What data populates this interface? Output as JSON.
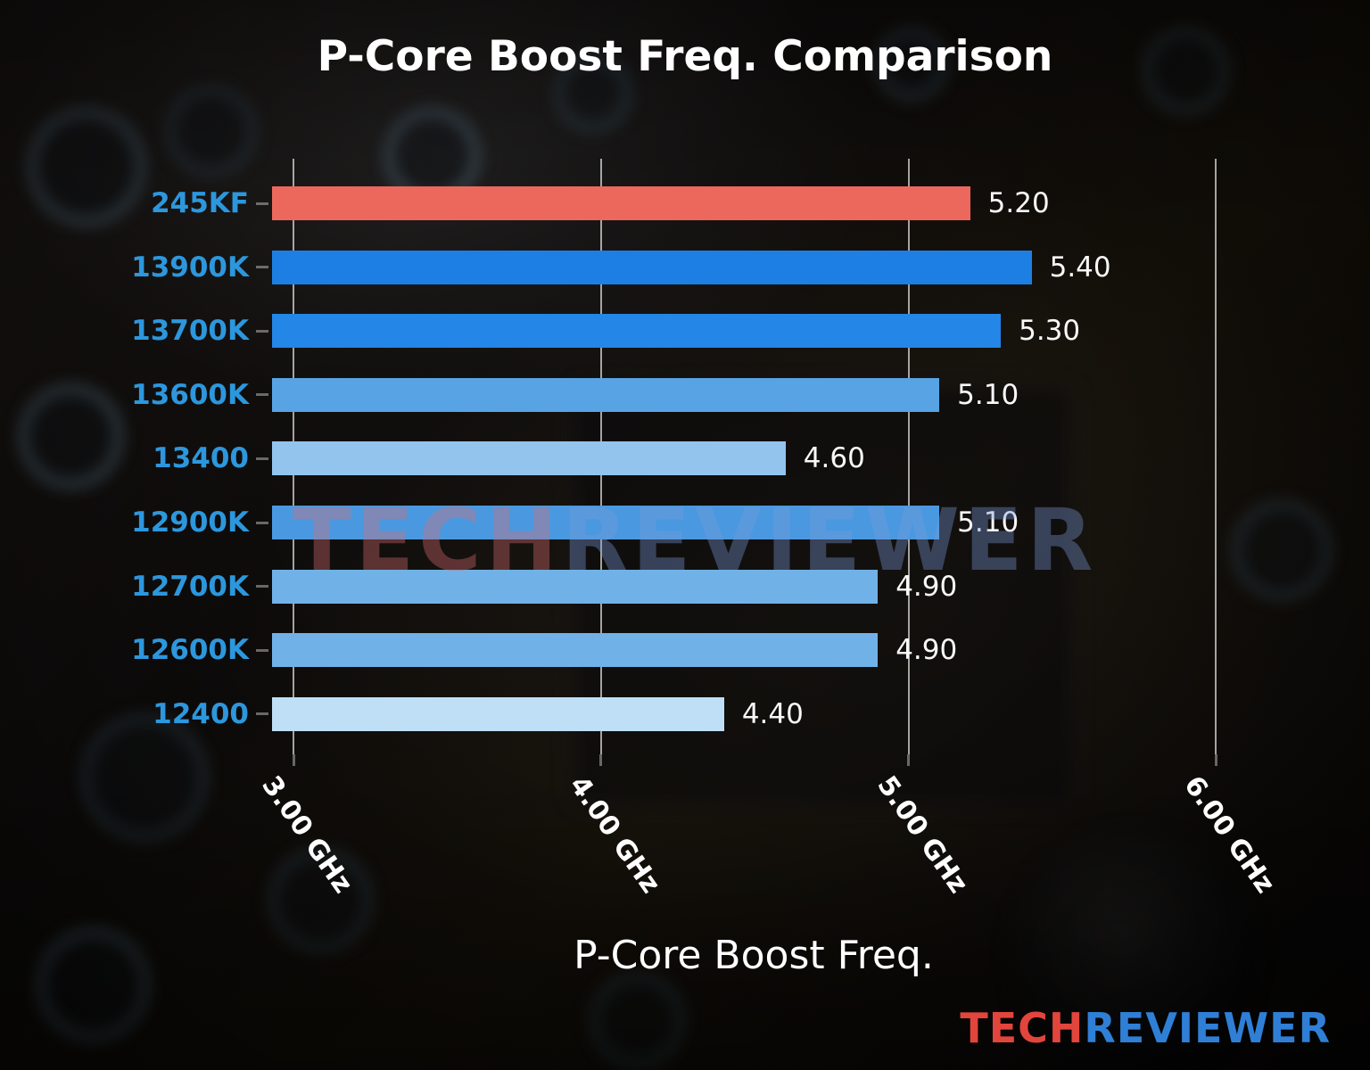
{
  "title": "P-Core Boost Freq. Comparison",
  "chart_data": {
    "type": "bar",
    "orientation": "horizontal",
    "title": "P-Core Boost Freq. Comparison",
    "xlabel": "P-Core Boost Freq.",
    "ylabel": "",
    "categories": [
      "245KF",
      "13900K",
      "13700K",
      "13600K",
      "13400",
      "12900K",
      "12700K",
      "12600K",
      "12400"
    ],
    "values": [
      5.2,
      5.4,
      5.3,
      5.1,
      4.6,
      5.1,
      4.9,
      4.9,
      4.4
    ],
    "value_labels": [
      "5.20",
      "5.40",
      "5.30",
      "5.10",
      "4.60",
      "5.10",
      "4.90",
      "4.90",
      "4.40"
    ],
    "bar_colors": [
      "#ec685d",
      "#1d7fe3",
      "#2486e6",
      "#58a3e4",
      "#93c4ee",
      "#4a99e0",
      "#70b2e8",
      "#70b2e8",
      "#bedff6"
    ],
    "unit": "GHz",
    "xlim": [
      2.93,
      6.28
    ],
    "xticks": {
      "values": [
        3,
        4,
        5,
        6
      ],
      "labels": [
        "3.00 GHz",
        "4.00 GHz",
        "5.00 GHz",
        "6.00 GHz"
      ]
    },
    "grid": true,
    "highlight_index": 0,
    "category_label_color": "#2d97dd",
    "value_label_color": "#f8f8f8",
    "highlight_color": "#ec685d"
  },
  "watermark": {
    "part1": "TECH",
    "part2": "REVIEWER"
  },
  "logo": {
    "part1": "TECH",
    "part2": "REVIEWER"
  }
}
